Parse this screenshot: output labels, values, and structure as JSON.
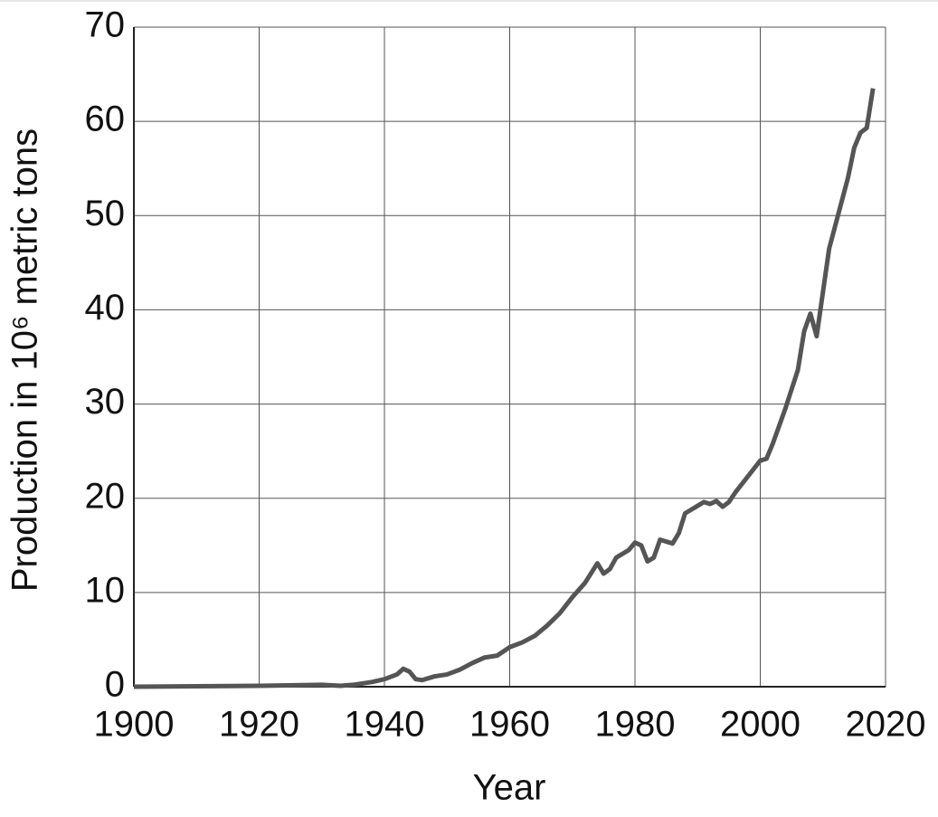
{
  "chart_data": {
    "type": "line",
    "xlabel": "Year",
    "ylabel": "Production in 10⁶ metric tons",
    "x": [
      1900,
      1910,
      1920,
      1930,
      1933,
      1935,
      1938,
      1940,
      1942,
      1943,
      1944,
      1945,
      1946,
      1948,
      1950,
      1952,
      1954,
      1956,
      1958,
      1960,
      1962,
      1964,
      1966,
      1968,
      1970,
      1972,
      1974,
      1975,
      1976,
      1977,
      1979,
      1980,
      1981,
      1982,
      1983,
      1984,
      1986,
      1987,
      1988,
      1990,
      1991,
      1992,
      1993,
      1994,
      1995,
      1996,
      1998,
      2000,
      2001,
      2002,
      2004,
      2006,
      2007,
      2008,
      2009,
      2011,
      2013,
      2014,
      2015,
      2016,
      2017,
      2018
    ],
    "series": [
      {
        "name": "Production",
        "color": "#555555",
        "values": [
          0,
          0.05,
          0.1,
          0.2,
          0.1,
          0.2,
          0.5,
          0.8,
          1.3,
          1.9,
          1.6,
          0.8,
          0.7,
          1.1,
          1.3,
          1.8,
          2.5,
          3.1,
          3.3,
          4.2,
          4.7,
          5.4,
          6.5,
          7.8,
          9.5,
          11,
          13.1,
          12.0,
          12.5,
          13.7,
          14.5,
          15.3,
          15,
          13.3,
          13.7,
          15.6,
          15.2,
          16.3,
          18.4,
          19.2,
          19.6,
          19.4,
          19.7,
          19.1,
          19.6,
          20.6,
          22.3,
          24.0,
          24.2,
          25.8,
          29.5,
          33.6,
          37.7,
          39.6,
          37.2,
          46.5,
          51.5,
          54,
          57.2,
          58.8,
          59.3,
          63.5
        ]
      }
    ],
    "xlim": [
      1900,
      2020
    ],
    "xticks": [
      1900,
      1920,
      1940,
      1960,
      1980,
      2000,
      2020
    ],
    "ylim": [
      0,
      70
    ],
    "yticks": [
      0,
      10,
      20,
      30,
      40,
      50,
      60,
      70
    ],
    "grid": true
  }
}
